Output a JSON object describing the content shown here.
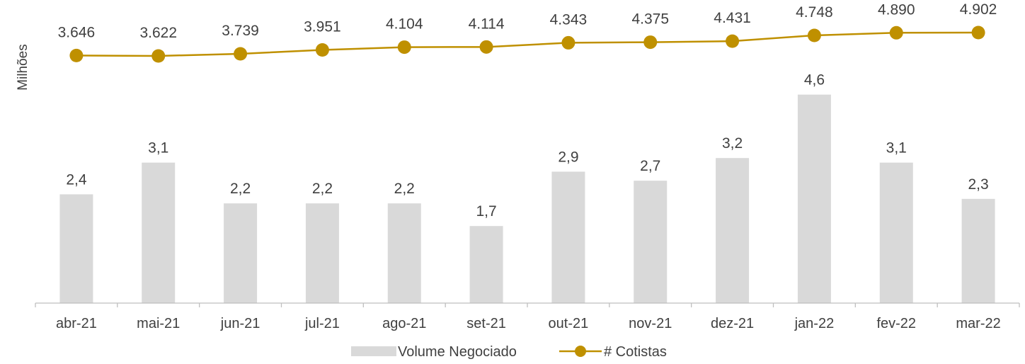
{
  "chart_data": {
    "type": "bar",
    "ylabel": "Milhões",
    "categories": [
      "abr-21",
      "mai-21",
      "jun-21",
      "jul-21",
      "ago-21",
      "set-21",
      "out-21",
      "nov-21",
      "dez-21",
      "jan-22",
      "fev-22",
      "mar-22"
    ],
    "series": [
      {
        "name": "Volume Negociado",
        "type": "bar",
        "color": "#d9d9d9",
        "values": [
          2.4,
          3.1,
          2.2,
          2.2,
          2.2,
          1.7,
          2.9,
          2.7,
          3.2,
          4.6,
          3.1,
          2.3
        ],
        "labels": [
          "2,4",
          "3,1",
          "2,2",
          "2,2",
          "2,2",
          "1,7",
          "2,9",
          "2,7",
          "3,2",
          "4,6",
          "3,1",
          "2,3"
        ]
      },
      {
        "name": "# Cotistas",
        "type": "line",
        "color": "#bf9000",
        "values": [
          3646,
          3622,
          3739,
          3951,
          4104,
          4114,
          4343,
          4375,
          4431,
          4748,
          4890,
          4902
        ],
        "labels": [
          "3.646",
          "3.622",
          "3.739",
          "3.951",
          "4.104",
          "4.114",
          "4.343",
          "4.375",
          "4.431",
          "4.748",
          "4.890",
          "4.902"
        ]
      }
    ],
    "legend_position": "bottom"
  }
}
